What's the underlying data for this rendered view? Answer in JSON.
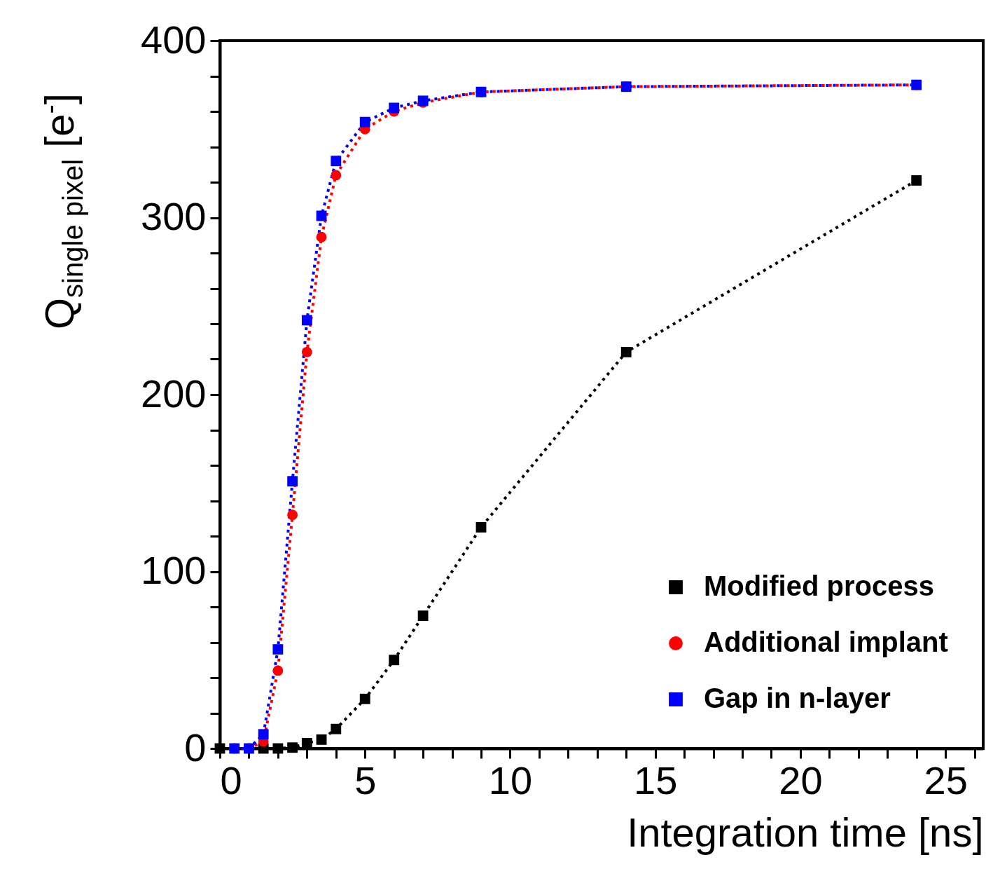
{
  "chart_data": {
    "type": "line",
    "xlabel": "Integration time [ns]",
    "ylabel": "Q$_{single pixel}$ [e$^{-}$]",
    "xlim": [
      0,
      26.3
    ],
    "ylim": [
      0,
      400
    ],
    "xticks": [
      0,
      {
        "value": 1,
        "label": null
      },
      {
        "value": 2,
        "label": null
      },
      {
        "value": 3,
        "label": null
      },
      {
        "value": 4,
        "label": null
      },
      5,
      {
        "value": 6,
        "label": null
      },
      {
        "value": 7,
        "label": null
      },
      {
        "value": 8,
        "label": null
      },
      {
        "value": 9,
        "label": null
      },
      10,
      {
        "value": 11,
        "label": null
      },
      {
        "value": 12,
        "label": null
      },
      {
        "value": 13,
        "label": null
      },
      {
        "value": 14,
        "label": null
      },
      15,
      {
        "value": 16,
        "label": null
      },
      {
        "value": 17,
        "label": null
      },
      {
        "value": 18,
        "label": null
      },
      {
        "value": 19,
        "label": null
      },
      20,
      {
        "value": 21,
        "label": null
      },
      {
        "value": 22,
        "label": null
      },
      {
        "value": 23,
        "label": null
      },
      {
        "value": 24,
        "label": null
      },
      25,
      {
        "value": 26,
        "label": null
      }
    ],
    "yticks": [
      0,
      {
        "value": 20,
        "label": null
      },
      {
        "value": 40,
        "label": null
      },
      {
        "value": 60,
        "label": null
      },
      {
        "value": 80,
        "label": null
      },
      100,
      {
        "value": 120,
        "label": null
      },
      {
        "value": 140,
        "label": null
      },
      {
        "value": 160,
        "label": null
      },
      {
        "value": 180,
        "label": null
      },
      200,
      {
        "value": 220,
        "label": null
      },
      {
        "value": 240,
        "label": null
      },
      {
        "value": 260,
        "label": null
      },
      {
        "value": 280,
        "label": null
      },
      300,
      {
        "value": 320,
        "label": null
      },
      {
        "value": 340,
        "label": null
      },
      {
        "value": 360,
        "label": null
      },
      {
        "value": 380,
        "label": null
      },
      400
    ],
    "grid": false,
    "legend": "bottom right",
    "line_style": "dotted",
    "series": [
      {
        "name": "Modified process",
        "color": "#000000",
        "marker": "square",
        "x": [
          0,
          1.5,
          2,
          2.5,
          3,
          3.5,
          4,
          5,
          6,
          7,
          9,
          14,
          24
        ],
        "values": [
          0,
          0,
          0,
          0.5,
          3,
          5,
          11,
          28,
          50,
          75,
          125,
          224,
          321
        ]
      },
      {
        "name": "Additional implant",
        "color": "#ff0000",
        "marker": "circle",
        "x": [
          0.5,
          1,
          1.5,
          2,
          2.5,
          3,
          3.5,
          4,
          5,
          6,
          7,
          9,
          14,
          24
        ],
        "values": [
          0,
          0,
          4,
          44,
          132,
          224,
          289,
          324,
          350,
          360,
          365,
          371,
          374,
          375
        ]
      },
      {
        "name": "Gap in n-layer",
        "color": "#0000ff",
        "marker": "square",
        "x": [
          0.5,
          1,
          1.5,
          2,
          2.5,
          3,
          3.5,
          4,
          5,
          6,
          7,
          9,
          14,
          24
        ],
        "values": [
          0,
          0,
          8,
          56,
          151,
          242,
          301,
          332,
          354,
          362,
          366,
          371,
          374,
          375
        ]
      }
    ]
  }
}
